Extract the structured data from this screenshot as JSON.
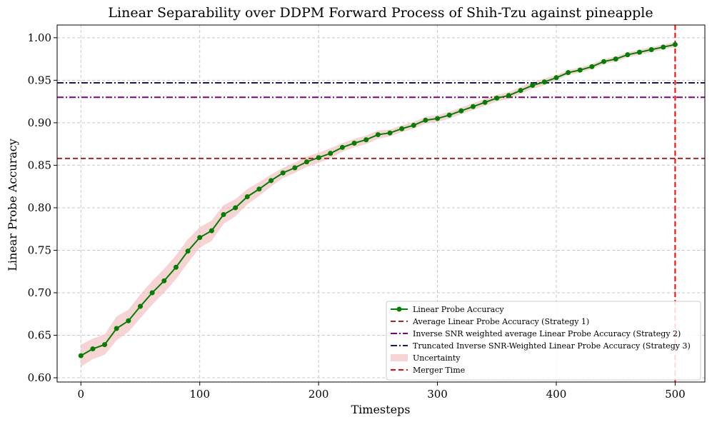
{
  "chart_data": {
    "type": "line",
    "title": "Linear Separability over DDPM Forward Process of Shih-Tzu against pineapple",
    "xlabel": "Timesteps",
    "ylabel": "Linear Probe Accuracy",
    "xlim": [
      -20,
      525
    ],
    "ylim": [
      0.595,
      1.015
    ],
    "xticks": [
      0,
      100,
      200,
      300,
      400,
      500
    ],
    "yticks": [
      0.6,
      0.65,
      0.7,
      0.75,
      0.8,
      0.85,
      0.9,
      0.95,
      1.0
    ],
    "xtick_labels": [
      "0",
      "100",
      "200",
      "300",
      "400",
      "500"
    ],
    "ytick_labels": [
      "0.60",
      "0.65",
      "0.70",
      "0.75",
      "0.80",
      "0.85",
      "0.90",
      "0.95",
      "1.00"
    ],
    "grid": true,
    "legend_position": "bottom-right",
    "series": [
      {
        "name": "Linear Probe Accuracy",
        "color": "#008000",
        "x": [
          0,
          10,
          20,
          30,
          40,
          50,
          60,
          70,
          80,
          90,
          100,
          110,
          120,
          130,
          140,
          150,
          160,
          170,
          180,
          190,
          200,
          210,
          220,
          230,
          240,
          250,
          260,
          270,
          280,
          290,
          300,
          310,
          320,
          330,
          340,
          350,
          360,
          370,
          380,
          390,
          400,
          410,
          420,
          430,
          440,
          450,
          460,
          470,
          480,
          490,
          500
        ],
        "y": [
          0.626,
          0.634,
          0.639,
          0.658,
          0.667,
          0.684,
          0.7,
          0.714,
          0.73,
          0.749,
          0.765,
          0.773,
          0.792,
          0.8,
          0.813,
          0.822,
          0.832,
          0.841,
          0.847,
          0.854,
          0.859,
          0.864,
          0.871,
          0.876,
          0.88,
          0.886,
          0.888,
          0.893,
          0.897,
          0.903,
          0.905,
          0.909,
          0.914,
          0.919,
          0.924,
          0.929,
          0.932,
          0.938,
          0.944,
          0.948,
          0.953,
          0.959,
          0.962,
          0.966,
          0.972,
          0.975,
          0.98,
          0.983,
          0.986,
          0.989,
          0.992
        ],
        "uncertainty": [
          0.013,
          0.012,
          0.012,
          0.014,
          0.013,
          0.014,
          0.014,
          0.014,
          0.014,
          0.014,
          0.012,
          0.012,
          0.011,
          0.01,
          0.009,
          0.008,
          0.007,
          0.006,
          0.006,
          0.006,
          0.006,
          0.006,
          0.005,
          0.005,
          0.005,
          0.005,
          0.004,
          0.004,
          0.004,
          0.004,
          0.004,
          0.004,
          0.004,
          0.004,
          0.004,
          0.004,
          0.004,
          0.004,
          0.004,
          0.004,
          0.003,
          0.003,
          0.003,
          0.003,
          0.003,
          0.003,
          0.003,
          0.003,
          0.003,
          0.003,
          0.003
        ]
      }
    ],
    "hlines": [
      {
        "name": "Average Linear Probe Accuracy (Strategy 1)",
        "y": 0.858,
        "color": "#b22222",
        "style": "dashed"
      },
      {
        "name": "Inverse SNR weighted average Linear Probe Accuracy (Strategy 2)",
        "y": 0.93,
        "color": "#800080",
        "style": "dashdot"
      },
      {
        "name": "Truncated Inverse SNR-Weighted Linear Probe Accuracy (Strategy 3)",
        "y": 0.947,
        "color": "#191970",
        "style": "dashdot"
      }
    ],
    "vlines": [
      {
        "name": "Merger Time",
        "x": 500,
        "color": "#ff0000",
        "style": "dashed"
      }
    ],
    "legend": [
      {
        "label": "Linear Probe Accuracy",
        "kind": "line-marker",
        "color": "#008000"
      },
      {
        "label": "Average Linear Probe Accuracy (Strategy 1)",
        "kind": "dashed",
        "color": "#b22222"
      },
      {
        "label": "Inverse SNR weighted average Linear Probe Accuracy (Strategy 2)",
        "kind": "dashdot",
        "color": "#800080"
      },
      {
        "label": "Truncated Inverse SNR-Weighted Linear Probe Accuracy (Strategy 3)",
        "kind": "dashdot",
        "color": "#191970"
      },
      {
        "label": "Uncertainty",
        "kind": "patch",
        "color": "#f4b6b6"
      },
      {
        "label": "Merger Time",
        "kind": "dashed",
        "color": "#ff0000"
      }
    ]
  }
}
